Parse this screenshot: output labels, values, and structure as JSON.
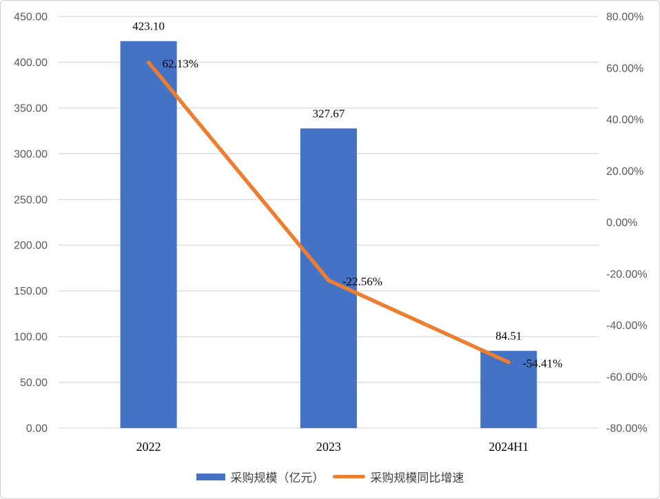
{
  "chart_data": {
    "type": "bar",
    "subtype": "bar-line-combo",
    "title": "",
    "categories": [
      "2022",
      "2023",
      "2024H1"
    ],
    "series": [
      {
        "name": "采购规模（亿元）",
        "type": "bar",
        "axis": "left",
        "values": [
          423.1,
          327.67,
          84.51
        ],
        "labels": [
          "423.10",
          "327.67",
          "84.51"
        ],
        "color": "#4472C4"
      },
      {
        "name": "采购规模同比增速",
        "type": "line",
        "axis": "right",
        "values": [
          62.13,
          -22.56,
          -54.41
        ],
        "labels": [
          "62.13%",
          "-22.56%",
          "-54.41%"
        ],
        "color": "#ED7D31"
      }
    ],
    "left_axis": {
      "min": 0,
      "max": 450,
      "step": 50,
      "tick_labels_top_to_bottom": [
        "450.00",
        "400.00",
        "350.00",
        "300.00",
        "250.00",
        "200.00",
        "150.00",
        "100.00",
        "50.00",
        "0.00"
      ]
    },
    "right_axis": {
      "min": -80,
      "max": 80,
      "step": 20,
      "tick_labels_top_to_bottom": [
        "80.00%",
        "60.00%",
        "40.00%",
        "20.00%",
        "0.00%",
        "-20.00%",
        "-40.00%",
        "-60.00%",
        "-80.00%"
      ]
    },
    "grid": true,
    "gridline_color": "#d9d9d9",
    "legend_position": "bottom"
  },
  "legend": {
    "items": [
      {
        "label": "采购规模（亿元）",
        "color": "#4472C4",
        "marker": "bar"
      },
      {
        "label": "采购规模同比增速",
        "color": "#ED7D31",
        "marker": "line"
      }
    ]
  },
  "colors": {
    "bar": "#4472C4",
    "line": "#ED7D31",
    "gridline": "#d9d9d9",
    "tick_text": "#595959",
    "label_text": "#000000",
    "frame_border": "#d2d0d0",
    "background": "#ffffff"
  }
}
